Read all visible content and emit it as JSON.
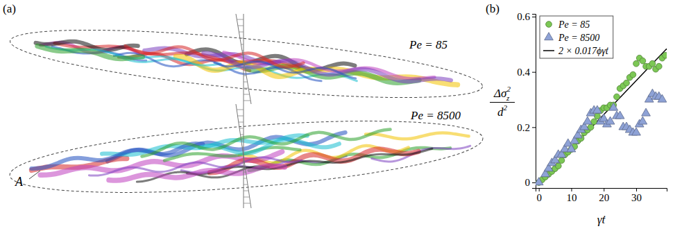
{
  "panel_a": {
    "label": "(a)",
    "top_label": "Pe = 85",
    "bottom_label": "Pe = 8500",
    "annotation": "A"
  },
  "chart_data": {
    "type": "scatter",
    "panel_label": "(b)",
    "xlabel": "γ̇t",
    "ylabel": {
      "num": "Δσ",
      "num_sub": "z",
      "num_sup": "2",
      "den": "d",
      "den_sup": "2"
    },
    "xlim": [
      -1,
      39.4
    ],
    "xticks": [
      0,
      10,
      20,
      30
    ],
    "ylim": [
      -0.02,
      0.61
    ],
    "yticks": [
      0,
      0.2,
      0.4,
      0.6
    ],
    "legend": "upper left",
    "series": [
      {
        "name": "Pe = 85",
        "type": "scatter",
        "marker": "circle",
        "color": "#7cc855",
        "x": [
          0,
          1,
          2,
          3,
          4,
          5,
          6,
          7,
          8,
          9,
          10,
          11,
          12,
          13,
          14,
          15,
          16,
          17,
          18,
          19,
          20,
          21,
          22,
          23,
          24,
          25,
          26,
          27,
          28,
          29,
          30,
          31,
          32,
          33,
          34,
          35,
          36,
          37,
          38,
          39
        ],
        "values": [
          0,
          0.01,
          0.02,
          0.03,
          0.04,
          0.05,
          0.06,
          0.08,
          0.1,
          0.11,
          0.12,
          0.13,
          0.15,
          0.16,
          0.18,
          0.19,
          0.2,
          0.22,
          0.24,
          0.26,
          0.27,
          0.27,
          0.28,
          0.28,
          0.31,
          0.34,
          0.35,
          0.36,
          0.38,
          0.39,
          0.43,
          0.45,
          0.44,
          0.42,
          0.42,
          0.43,
          0.41,
          0.42,
          0.45,
          0.46
        ]
      },
      {
        "name": "Pe = 8500",
        "type": "scatter",
        "marker": "triangle",
        "color": "#8ea2d6",
        "x": [
          0,
          2,
          3,
          4,
          5,
          6,
          7,
          8,
          9,
          10,
          11,
          12,
          13,
          14,
          15,
          16,
          17,
          18,
          19,
          20,
          21,
          22,
          23,
          24,
          25,
          26,
          27,
          28,
          29,
          30,
          31,
          32,
          33,
          34,
          35,
          36,
          37,
          38
        ],
        "values": [
          0,
          0.03,
          0.05,
          0.07,
          0.08,
          0.1,
          0.1,
          0.12,
          0.14,
          0.12,
          0.15,
          0.17,
          0.19,
          0.2,
          0.22,
          0.25,
          0.26,
          0.26,
          0.22,
          0.23,
          0.21,
          0.22,
          0.27,
          0.24,
          0.24,
          0.2,
          0.2,
          0.19,
          0.18,
          0.18,
          0.21,
          0.22,
          0.25,
          0.3,
          0.32,
          0.31,
          0.31,
          0.3
        ]
      },
      {
        "name": "2 × 0.017ϕγ̇t",
        "type": "line",
        "line_style": "solid",
        "color": "#000000",
        "x": [
          0,
          39.4
        ],
        "values": [
          0,
          0.484
        ]
      }
    ]
  }
}
